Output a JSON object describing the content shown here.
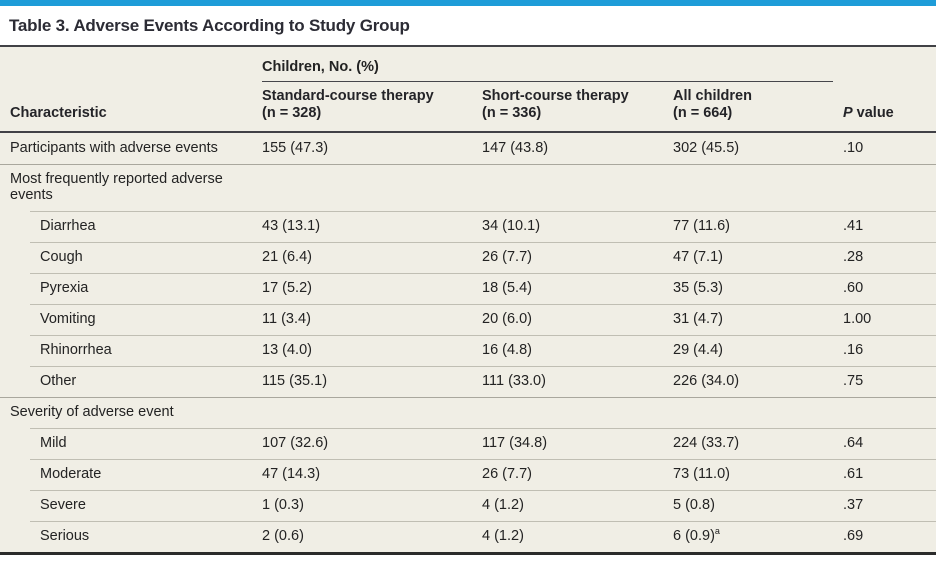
{
  "title": "Table 3. Adverse Events According to Study Group",
  "colors": {
    "accent_bar": "#1e9cd8",
    "table_background": "#f0eee5",
    "heavy_rule": "#414146",
    "row_separator": "#c0beb3",
    "section_separator": "#a9a79d"
  },
  "table": {
    "spanner": "Children, No. (%)",
    "columns": [
      {
        "label": "Characteristic"
      },
      {
        "label": "Standard-course therapy",
        "sub": "(n = 328)"
      },
      {
        "label": "Short-course therapy",
        "sub": "(n = 336)"
      },
      {
        "label": "All children",
        "sub": "(n = 664)"
      },
      {
        "italic": "P",
        "rest": "value"
      }
    ],
    "rows": [
      {
        "type": "data",
        "indent": false,
        "label": "Participants with adverse events",
        "values": [
          "155 (47.3)",
          "147 (43.8)",
          "302 (45.5)",
          ".10"
        ]
      },
      {
        "type": "section",
        "label": "Most frequently reported adverse events"
      },
      {
        "type": "data",
        "indent": true,
        "label": "Diarrhea",
        "values": [
          "43 (13.1)",
          "34 (10.1)",
          "77 (11.6)",
          ".41"
        ]
      },
      {
        "type": "data",
        "indent": true,
        "label": "Cough",
        "values": [
          "21 (6.4)",
          "26 (7.7)",
          "47 (7.1)",
          ".28"
        ]
      },
      {
        "type": "data",
        "indent": true,
        "label": "Pyrexia",
        "values": [
          "17 (5.2)",
          "18 (5.4)",
          "35 (5.3)",
          ".60"
        ]
      },
      {
        "type": "data",
        "indent": true,
        "label": "Vomiting",
        "values": [
          "11 (3.4)",
          "20 (6.0)",
          "31 (4.7)",
          "1.00"
        ]
      },
      {
        "type": "data",
        "indent": true,
        "label": "Rhinorrhea",
        "values": [
          "13 (4.0)",
          "16 (4.8)",
          "29 (4.4)",
          ".16"
        ]
      },
      {
        "type": "data",
        "indent": true,
        "label": "Other",
        "values": [
          "115 (35.1)",
          "111 (33.0)",
          "226 (34.0)",
          ".75"
        ]
      },
      {
        "type": "section",
        "label": "Severity of adverse event"
      },
      {
        "type": "data",
        "indent": true,
        "label": "Mild",
        "values": [
          "107 (32.6)",
          "117 (34.8)",
          "224 (33.7)",
          ".64"
        ]
      },
      {
        "type": "data",
        "indent": true,
        "label": "Moderate",
        "values": [
          "47 (14.3)",
          "26 (7.7)",
          "73 (11.0)",
          ".61"
        ]
      },
      {
        "type": "data",
        "indent": true,
        "label": "Severe",
        "values": [
          "1 (0.3)",
          "4 (1.2)",
          "5 (0.8)",
          ".37"
        ]
      },
      {
        "type": "data",
        "indent": true,
        "label": "Serious",
        "values": [
          "2 (0.6)",
          "4 (1.2)",
          {
            "text": "6 (0.9)",
            "sup": "a"
          },
          ".69"
        ]
      }
    ]
  }
}
